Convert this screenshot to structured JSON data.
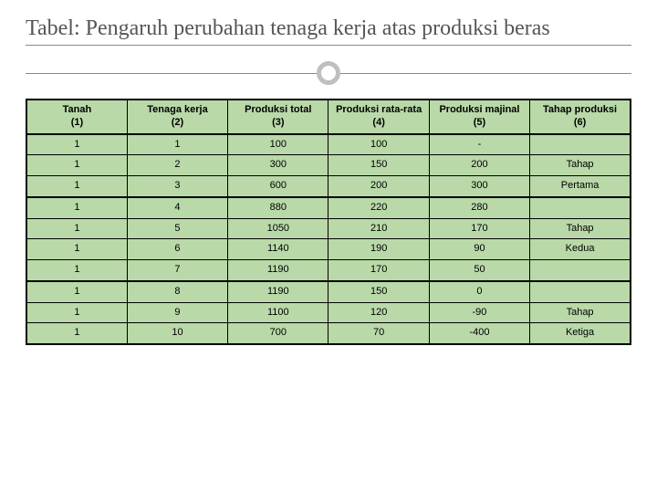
{
  "title": "Tabel: Pengaruh perubahan tenaga kerja atas produksi beras",
  "table": {
    "header_bg": "#b9d9a8",
    "cell_bg": "#b9d9a8",
    "border_color": "#000000",
    "columns": [
      {
        "label": "Tanah",
        "num": "(1)"
      },
      {
        "label": "Tenaga kerja",
        "num": "(2)"
      },
      {
        "label": "Produksi total",
        "num": "(3)"
      },
      {
        "label": "Produksi rata-rata",
        "num": "(4)"
      },
      {
        "label": "Produksi majinal",
        "num": "(5)"
      },
      {
        "label": "Tahap produksi",
        "num": "(6)"
      }
    ],
    "groups": [
      {
        "rows": [
          [
            "1",
            "1",
            "100",
            "100",
            "-",
            ""
          ],
          [
            "1",
            "2",
            "300",
            "150",
            "200",
            "Tahap"
          ],
          [
            "1",
            "3",
            "600",
            "200",
            "300",
            "Pertama"
          ]
        ]
      },
      {
        "rows": [
          [
            "1",
            "4",
            "880",
            "220",
            "280",
            ""
          ],
          [
            "1",
            "5",
            "1050",
            "210",
            "170",
            "Tahap"
          ],
          [
            "1",
            "6",
            "1140",
            "190",
            "90",
            "Kedua"
          ],
          [
            "1",
            "7",
            "1190",
            "170",
            "50",
            ""
          ]
        ]
      },
      {
        "rows": [
          [
            "1",
            "8",
            "1190",
            "150",
            "0",
            ""
          ],
          [
            "1",
            "9",
            "1100",
            "120",
            "-90",
            "Tahap"
          ],
          [
            "1",
            "10",
            "700",
            "70",
            "-400",
            "Ketiga"
          ]
        ]
      }
    ]
  }
}
